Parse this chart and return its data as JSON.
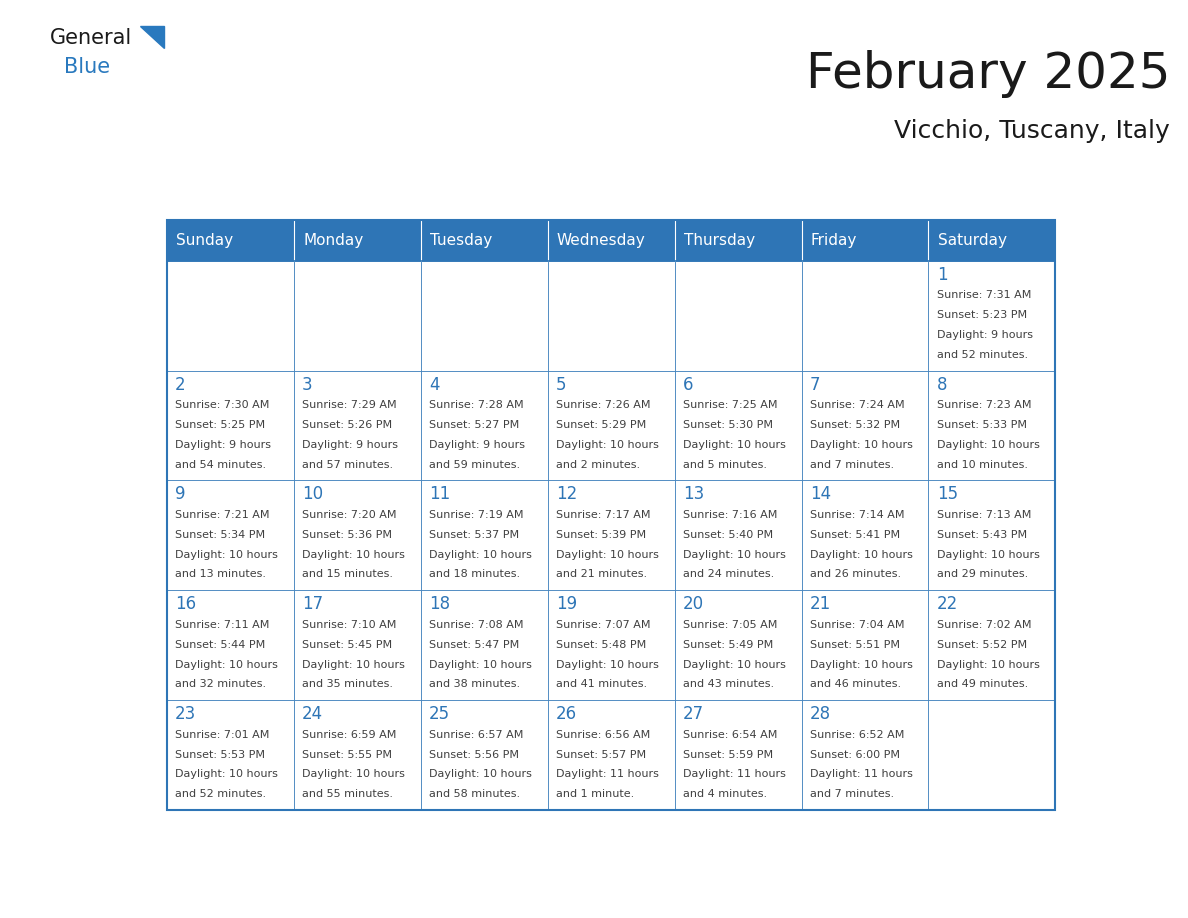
{
  "title": "February 2025",
  "subtitle": "Vicchio, Tuscany, Italy",
  "header_color": "#2E75B6",
  "header_text_color": "#FFFFFF",
  "cell_bg_color": "#FFFFFF",
  "border_color": "#2E75B6",
  "day_number_color": "#2E75B6",
  "cell_text_color": "#404040",
  "days_of_week": [
    "Sunday",
    "Monday",
    "Tuesday",
    "Wednesday",
    "Thursday",
    "Friday",
    "Saturday"
  ],
  "weeks": [
    [
      {
        "day": "",
        "info": ""
      },
      {
        "day": "",
        "info": ""
      },
      {
        "day": "",
        "info": ""
      },
      {
        "day": "",
        "info": ""
      },
      {
        "day": "",
        "info": ""
      },
      {
        "day": "",
        "info": ""
      },
      {
        "day": "1",
        "info": "Sunrise: 7:31 AM\nSunset: 5:23 PM\nDaylight: 9 hours\nand 52 minutes."
      }
    ],
    [
      {
        "day": "2",
        "info": "Sunrise: 7:30 AM\nSunset: 5:25 PM\nDaylight: 9 hours\nand 54 minutes."
      },
      {
        "day": "3",
        "info": "Sunrise: 7:29 AM\nSunset: 5:26 PM\nDaylight: 9 hours\nand 57 minutes."
      },
      {
        "day": "4",
        "info": "Sunrise: 7:28 AM\nSunset: 5:27 PM\nDaylight: 9 hours\nand 59 minutes."
      },
      {
        "day": "5",
        "info": "Sunrise: 7:26 AM\nSunset: 5:29 PM\nDaylight: 10 hours\nand 2 minutes."
      },
      {
        "day": "6",
        "info": "Sunrise: 7:25 AM\nSunset: 5:30 PM\nDaylight: 10 hours\nand 5 minutes."
      },
      {
        "day": "7",
        "info": "Sunrise: 7:24 AM\nSunset: 5:32 PM\nDaylight: 10 hours\nand 7 minutes."
      },
      {
        "day": "8",
        "info": "Sunrise: 7:23 AM\nSunset: 5:33 PM\nDaylight: 10 hours\nand 10 minutes."
      }
    ],
    [
      {
        "day": "9",
        "info": "Sunrise: 7:21 AM\nSunset: 5:34 PM\nDaylight: 10 hours\nand 13 minutes."
      },
      {
        "day": "10",
        "info": "Sunrise: 7:20 AM\nSunset: 5:36 PM\nDaylight: 10 hours\nand 15 minutes."
      },
      {
        "day": "11",
        "info": "Sunrise: 7:19 AM\nSunset: 5:37 PM\nDaylight: 10 hours\nand 18 minutes."
      },
      {
        "day": "12",
        "info": "Sunrise: 7:17 AM\nSunset: 5:39 PM\nDaylight: 10 hours\nand 21 minutes."
      },
      {
        "day": "13",
        "info": "Sunrise: 7:16 AM\nSunset: 5:40 PM\nDaylight: 10 hours\nand 24 minutes."
      },
      {
        "day": "14",
        "info": "Sunrise: 7:14 AM\nSunset: 5:41 PM\nDaylight: 10 hours\nand 26 minutes."
      },
      {
        "day": "15",
        "info": "Sunrise: 7:13 AM\nSunset: 5:43 PM\nDaylight: 10 hours\nand 29 minutes."
      }
    ],
    [
      {
        "day": "16",
        "info": "Sunrise: 7:11 AM\nSunset: 5:44 PM\nDaylight: 10 hours\nand 32 minutes."
      },
      {
        "day": "17",
        "info": "Sunrise: 7:10 AM\nSunset: 5:45 PM\nDaylight: 10 hours\nand 35 minutes."
      },
      {
        "day": "18",
        "info": "Sunrise: 7:08 AM\nSunset: 5:47 PM\nDaylight: 10 hours\nand 38 minutes."
      },
      {
        "day": "19",
        "info": "Sunrise: 7:07 AM\nSunset: 5:48 PM\nDaylight: 10 hours\nand 41 minutes."
      },
      {
        "day": "20",
        "info": "Sunrise: 7:05 AM\nSunset: 5:49 PM\nDaylight: 10 hours\nand 43 minutes."
      },
      {
        "day": "21",
        "info": "Sunrise: 7:04 AM\nSunset: 5:51 PM\nDaylight: 10 hours\nand 46 minutes."
      },
      {
        "day": "22",
        "info": "Sunrise: 7:02 AM\nSunset: 5:52 PM\nDaylight: 10 hours\nand 49 minutes."
      }
    ],
    [
      {
        "day": "23",
        "info": "Sunrise: 7:01 AM\nSunset: 5:53 PM\nDaylight: 10 hours\nand 52 minutes."
      },
      {
        "day": "24",
        "info": "Sunrise: 6:59 AM\nSunset: 5:55 PM\nDaylight: 10 hours\nand 55 minutes."
      },
      {
        "day": "25",
        "info": "Sunrise: 6:57 AM\nSunset: 5:56 PM\nDaylight: 10 hours\nand 58 minutes."
      },
      {
        "day": "26",
        "info": "Sunrise: 6:56 AM\nSunset: 5:57 PM\nDaylight: 11 hours\nand 1 minute."
      },
      {
        "day": "27",
        "info": "Sunrise: 6:54 AM\nSunset: 5:59 PM\nDaylight: 11 hours\nand 4 minutes."
      },
      {
        "day": "28",
        "info": "Sunrise: 6:52 AM\nSunset: 6:00 PM\nDaylight: 11 hours\nand 7 minutes."
      },
      {
        "day": "",
        "info": ""
      }
    ]
  ]
}
